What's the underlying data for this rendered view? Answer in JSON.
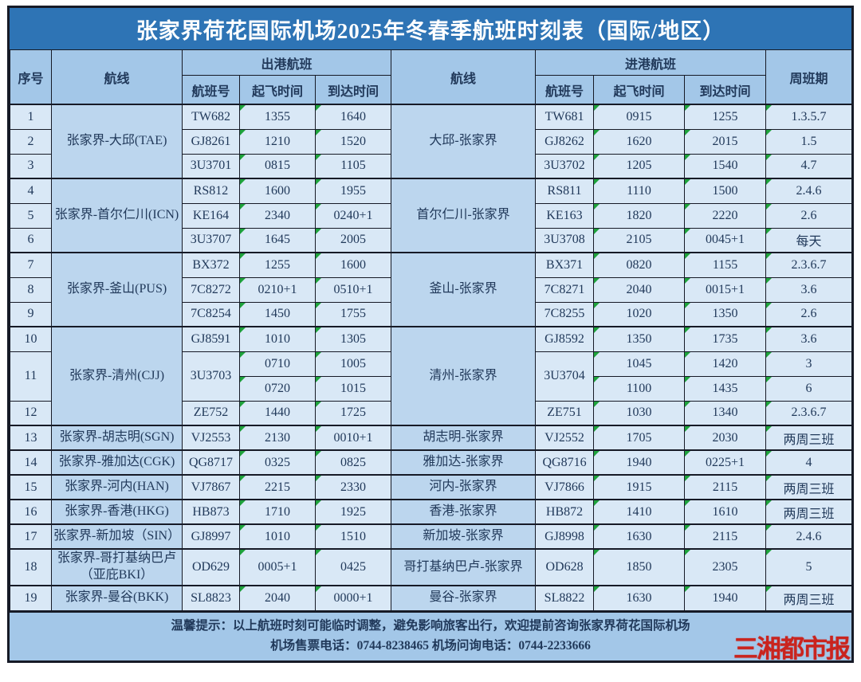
{
  "title": "张家界荷花国际机场2025年冬春季航班时刻表（国际/地区）",
  "header": {
    "seq": "序号",
    "route": "航线",
    "departure_group": "出港航班",
    "arrival_group": "进港航班",
    "flight_no": "航班号",
    "depart_time": "起飞时间",
    "arrive_time": "到达时间",
    "weekly": "周班期"
  },
  "route_groups": [
    {
      "out_route": "张家界-大邱(TAE)",
      "in_route": "大邱-张家界",
      "flights": [
        {
          "seq": "1",
          "out_no": "TW682",
          "out_dep": "1355",
          "out_arr": "1640",
          "in_no": "TW681",
          "in_dep": "0915",
          "in_arr": "1255",
          "week": "1.3.5.7"
        },
        {
          "seq": "2",
          "out_no": "GJ8261",
          "out_dep": "1210",
          "out_arr": "1520",
          "in_no": "GJ8262",
          "in_dep": "1620",
          "in_arr": "2015",
          "week": "1.5"
        },
        {
          "seq": "3",
          "out_no": "3U3701",
          "out_dep": "0815",
          "out_arr": "1105",
          "in_no": "3U3702",
          "in_dep": "1205",
          "in_arr": "1540",
          "week": "4.7"
        }
      ]
    },
    {
      "out_route": "张家界-首尔仁川(ICN)",
      "in_route": "首尔仁川-张家界",
      "flights": [
        {
          "seq": "4",
          "out_no": "RS812",
          "out_dep": "1600",
          "out_arr": "1955",
          "in_no": "RS811",
          "in_dep": "1110",
          "in_arr": "1500",
          "week": "2.4.6"
        },
        {
          "seq": "5",
          "out_no": "KE164",
          "out_dep": "2340",
          "out_arr": "0240+1",
          "in_no": "KE163",
          "in_dep": "1820",
          "in_arr": "2220",
          "week": "2.6"
        },
        {
          "seq": "6",
          "out_no": "3U3707",
          "out_dep": "1645",
          "out_arr": "2005",
          "in_no": "3U3708",
          "in_dep": "2105",
          "in_arr": "0045+1",
          "week": "每天"
        }
      ]
    },
    {
      "out_route": "张家界-釜山(PUS)",
      "in_route": "釜山-张家界",
      "flights": [
        {
          "seq": "7",
          "out_no": "BX372",
          "out_dep": "1255",
          "out_arr": "1600",
          "in_no": "BX371",
          "in_dep": "0820",
          "in_arr": "1155",
          "week": "2.3.6.7"
        },
        {
          "seq": "8",
          "out_no": "7C8272",
          "out_dep": "0210+1",
          "out_arr": "0510+1",
          "in_no": "7C8271",
          "in_dep": "2040",
          "in_arr": "0015+1",
          "week": "3.6"
        },
        {
          "seq": "9",
          "out_no": "7C8254",
          "out_dep": "1450",
          "out_arr": "1755",
          "in_no": "7C8255",
          "in_dep": "1020",
          "in_arr": "1350",
          "week": "2.6"
        }
      ]
    },
    {
      "out_route": "张家界-清州(CJJ)",
      "in_route": "清州-张家界",
      "flights": [
        {
          "seq": "10",
          "out_no": "GJ8591",
          "out_dep": "1010",
          "out_arr": "1305",
          "in_no": "GJ8592",
          "in_dep": "1350",
          "in_arr": "1735",
          "week": "3.6"
        },
        {
          "seq": "11",
          "out_no": "3U3703",
          "in_no": "3U3704",
          "subrows": [
            {
              "out_dep": "0710",
              "out_arr": "1005",
              "in_dep": "1045",
              "in_arr": "1420",
              "week": "3"
            },
            {
              "out_dep": "0720",
              "out_arr": "1015",
              "in_dep": "1100",
              "in_arr": "1435",
              "week": "6"
            }
          ]
        },
        {
          "seq": "12",
          "out_no": "ZE752",
          "out_dep": "1440",
          "out_arr": "1725",
          "in_no": "ZE751",
          "in_dep": "1030",
          "in_arr": "1340",
          "week": "2.3.6.7"
        }
      ]
    },
    {
      "out_route": "张家界-胡志明(SGN)",
      "in_route": "胡志明-张家界",
      "flights": [
        {
          "seq": "13",
          "out_no": "VJ2553",
          "out_dep": "2130",
          "out_arr": "0010+1",
          "in_no": "VJ2552",
          "in_dep": "1705",
          "in_arr": "2030",
          "week": "两周三班"
        }
      ]
    },
    {
      "out_route": "张家界-雅加达(CGK)",
      "in_route": "雅加达-张家界",
      "flights": [
        {
          "seq": "14",
          "out_no": "QG8717",
          "out_dep": "0325",
          "out_arr": "0825",
          "in_no": "QG8716",
          "in_dep": "1940",
          "in_arr": "0225+1",
          "week": "4"
        }
      ]
    },
    {
      "out_route": "张家界-河内(HAN)",
      "in_route": "河内-张家界",
      "flights": [
        {
          "seq": "15",
          "out_no": "VJ7867",
          "out_dep": "2215",
          "out_arr": "2330",
          "in_no": "VJ7866",
          "in_dep": "1915",
          "in_arr": "2115",
          "week": "两周三班"
        }
      ]
    },
    {
      "out_route": "张家界-香港(HKG)",
      "in_route": "香港-张家界",
      "flights": [
        {
          "seq": "16",
          "out_no": "HB873",
          "out_dep": "1710",
          "out_arr": "1925",
          "in_no": "HB872",
          "in_dep": "1410",
          "in_arr": "1610",
          "week": "两周三班"
        }
      ]
    },
    {
      "out_route": "张家界-新加坡（SIN）",
      "in_route": "新加坡-张家界",
      "flights": [
        {
          "seq": "17",
          "out_no": "GJ8997",
          "out_dep": "1010",
          "out_arr": "1510",
          "in_no": "GJ8998",
          "in_dep": "1630",
          "in_arr": "2115",
          "week": "2.4.6"
        }
      ]
    },
    {
      "out_route": "张家界-哥打基纳巴卢\n（亚庇BKI）",
      "in_route": "哥打基纳巴卢-张家界",
      "flights": [
        {
          "seq": "18",
          "out_no": "OD629",
          "out_dep": "0005+1",
          "out_arr": "0425",
          "in_no": "OD628",
          "in_dep": "1850",
          "in_arr": "2305",
          "week": "5"
        }
      ]
    },
    {
      "out_route": "张家界-曼谷(BKK)",
      "in_route": "曼谷-张家界",
      "flights": [
        {
          "seq": "19",
          "out_no": "SL8823",
          "out_dep": "2040",
          "out_arr": "0000+1",
          "in_no": "SL8822",
          "in_dep": "1630",
          "in_arr": "1940",
          "week": "两周三班"
        }
      ]
    }
  ],
  "footer": {
    "tip": "温馨提示：以上航班时刻可能临时调整，避免影响旅客出行，欢迎提前咨询张家界荷花国际机场",
    "phones": "机场售票电话：0744-8238465 机场问询电话：0744-2233666",
    "logo": "三湘都市报"
  },
  "colors": {
    "title_blue": "#2e74b5",
    "header_fill": "#a3c7e8",
    "route_fill": "#bcd6ee",
    "cell_fill": "#d9e8f6",
    "border_dark": "#161a26",
    "text_navy": "#21395a",
    "marker_green": "#1fa33c",
    "logo_red": "#c9241e"
  }
}
